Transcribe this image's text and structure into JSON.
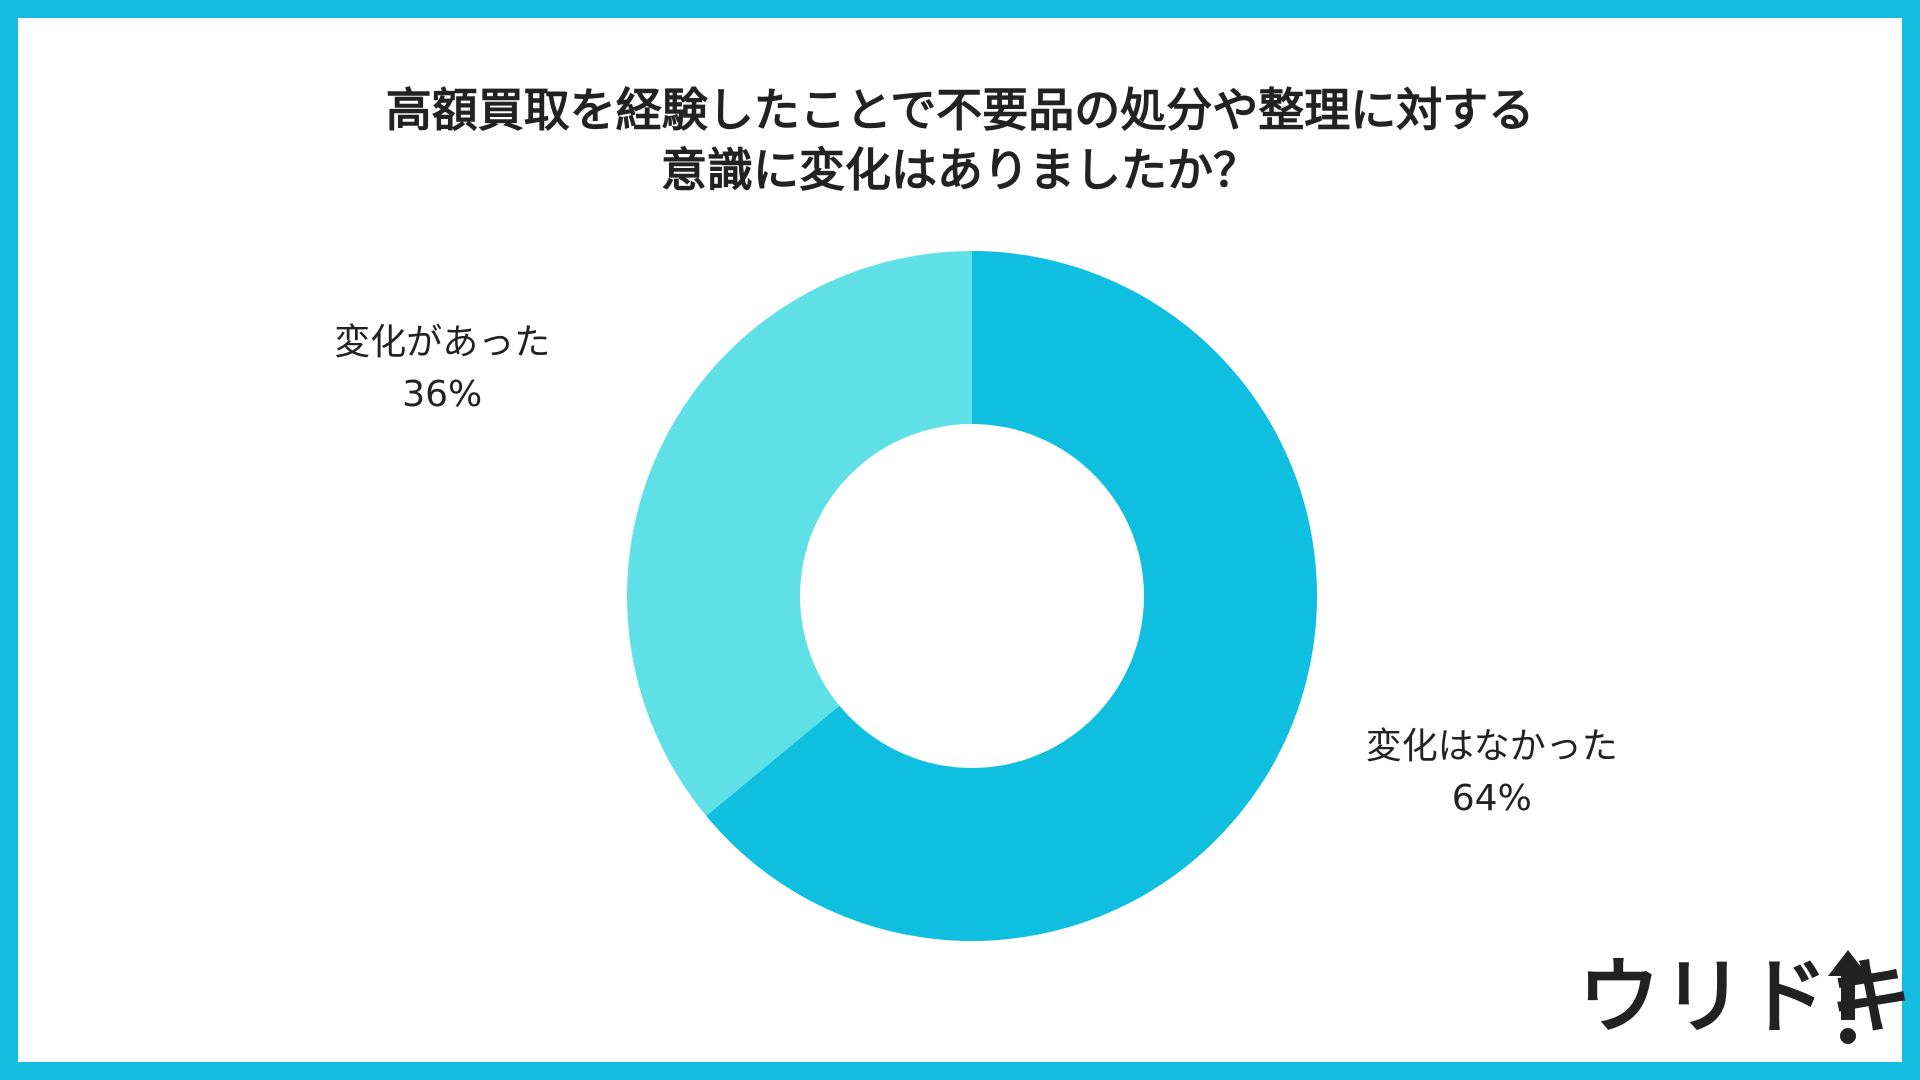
{
  "title": {
    "line1": "高額買取を経験したことで不要品の処分や整理に対する",
    "line2": "意識に変化はありましたか？"
  },
  "colors": {
    "border": "#14BDDF",
    "series_changed": "#5FE0E6",
    "series_unchanged": "#0FBFDF",
    "text": "#222222"
  },
  "chart_data": {
    "type": "pie",
    "title": "高額買取を経験したことで不要品の処分や整理に対する意識に変化はありましたか？",
    "donut": true,
    "categories": [
      "変化はなかった",
      "変化があった"
    ],
    "values": [
      64,
      36
    ],
    "value_labels": [
      "64%",
      "36%"
    ],
    "colors": [
      "#0FBFDF",
      "#5FE0E6"
    ],
    "start_angle_deg": 0,
    "direction": "clockwise"
  },
  "logo": {
    "text": "ウリドキ",
    "icon": "up-arrow-icon"
  }
}
